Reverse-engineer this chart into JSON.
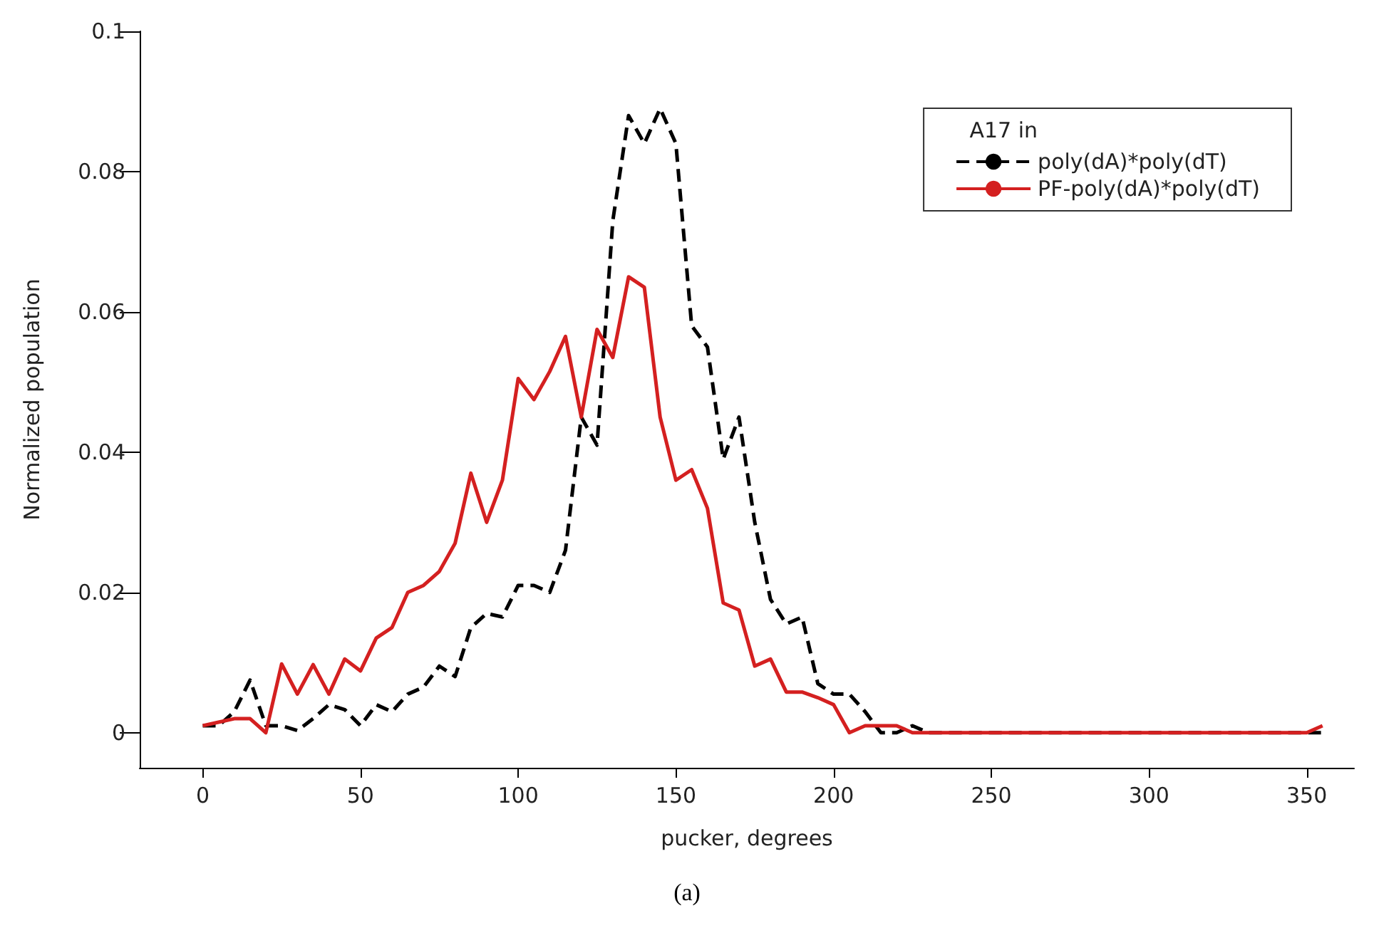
{
  "chart_data": {
    "type": "line",
    "xlabel": "pucker, degrees",
    "ylabel": "Normalized population",
    "legend_title": "A17 in",
    "legend": "top right",
    "grid": false,
    "marker": "none",
    "annotations": [
      "(a)"
    ],
    "xlim": [
      -20,
      365
    ],
    "xticks": [
      0,
      50,
      100,
      150,
      200,
      250,
      300,
      350
    ],
    "ylim": [
      -0.005,
      0.1
    ],
    "yticks": [
      0,
      0.02,
      0.04,
      0.06,
      0.08,
      0.1
    ],
    "x": [
      0,
      5,
      10,
      15,
      20,
      25,
      30,
      35,
      40,
      45,
      50,
      55,
      60,
      65,
      70,
      75,
      80,
      85,
      90,
      95,
      100,
      105,
      110,
      115,
      120,
      125,
      130,
      135,
      140,
      145,
      150,
      155,
      160,
      165,
      170,
      175,
      180,
      185,
      190,
      195,
      200,
      205,
      210,
      215,
      220,
      225,
      230,
      235,
      240,
      245,
      250,
      255,
      260,
      265,
      270,
      275,
      280,
      285,
      290,
      295,
      300,
      305,
      310,
      315,
      320,
      325,
      330,
      335,
      340,
      345,
      350,
      355
    ],
    "series": [
      {
        "name": "poly(dA)*poly(dT)",
        "color": "#000000",
        "line_style": "dashed",
        "values": [
          0.001,
          0.001,
          0.003,
          0.0075,
          0.001,
          0.001,
          0.0003,
          0.002,
          0.004,
          0.0033,
          0.001,
          0.004,
          0.003,
          0.0055,
          0.0065,
          0.0095,
          0.008,
          0.015,
          0.017,
          0.0165,
          0.021,
          0.021,
          0.02,
          0.026,
          0.045,
          0.041,
          0.073,
          0.088,
          0.084,
          0.089,
          0.084,
          0.058,
          0.055,
          0.039,
          0.045,
          0.03,
          0.019,
          0.0155,
          0.0165,
          0.007,
          0.0055,
          0.0055,
          0.003,
          0,
          0,
          0.001,
          0,
          0,
          0,
          0,
          0,
          0,
          0,
          0,
          0,
          0,
          0,
          0,
          0,
          0,
          0,
          0,
          0,
          0,
          0,
          0,
          0,
          0,
          0,
          0,
          0,
          0
        ]
      },
      {
        "name": "PF-poly(dA)*poly(dT)",
        "color": "#d42020",
        "line_style": "solid",
        "values": [
          0.001,
          0.0015,
          0.002,
          0.002,
          0,
          0.0098,
          0.0055,
          0.0097,
          0.0055,
          0.0105,
          0.0088,
          0.0135,
          0.015,
          0.02,
          0.021,
          0.023,
          0.027,
          0.037,
          0.03,
          0.036,
          0.0505,
          0.0475,
          0.0515,
          0.0565,
          0.045,
          0.0575,
          0.0535,
          0.065,
          0.0635,
          0.045,
          0.036,
          0.0375,
          0.032,
          0.0185,
          0.0175,
          0.0095,
          0.0105,
          0.0058,
          0.0058,
          0.005,
          0.004,
          0,
          0.001,
          0.001,
          0.001,
          0,
          0,
          0,
          0,
          0,
          0,
          0,
          0,
          0,
          0,
          0,
          0,
          0,
          0,
          0,
          0,
          0,
          0,
          0,
          0,
          0,
          0,
          0,
          0,
          0,
          0,
          0.001
        ]
      }
    ]
  }
}
